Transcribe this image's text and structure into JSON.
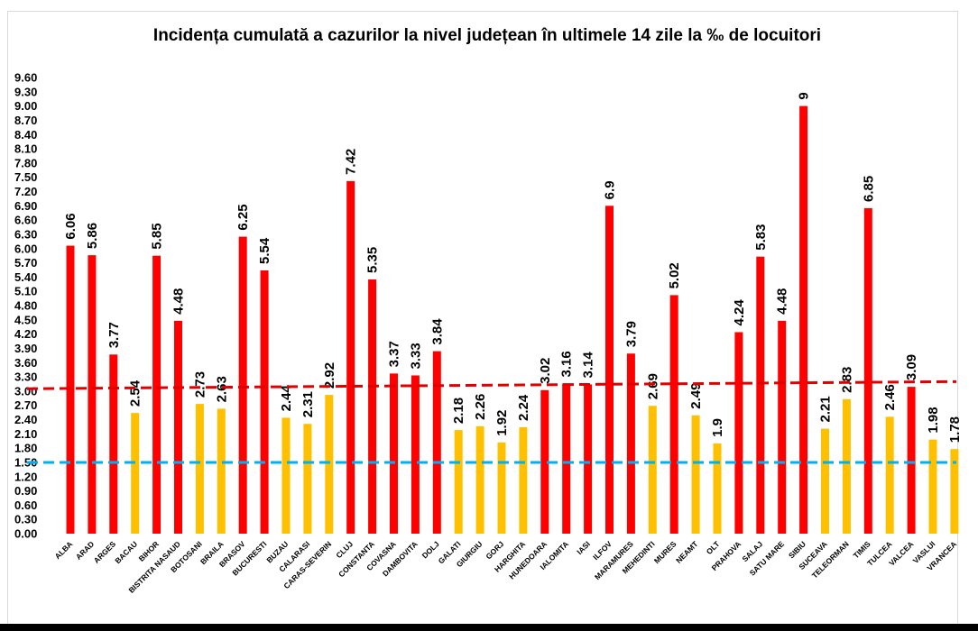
{
  "chart_data": {
    "type": "bar",
    "title": "Incidența cumulată a cazurilor la nivel județean în ultimele 14 zile la ‰ de locuitori",
    "xlabel": "",
    "ylabel": "",
    "ylim": [
      0,
      9.6
    ],
    "ytick_step": 0.3,
    "ytick_labels": [
      "0.00",
      "0.30",
      "0.60",
      "0.90",
      "1.20",
      "1.50",
      "1.80",
      "2.10",
      "2.40",
      "2.70",
      "3.00",
      "3.30",
      "3.60",
      "3.90",
      "4.20",
      "4.50",
      "4.80",
      "5.10",
      "5.40",
      "5.70",
      "6.00",
      "6.30",
      "6.60",
      "6.90",
      "7.20",
      "7.50",
      "7.80",
      "8.10",
      "8.40",
      "8.70",
      "9.00",
      "9.30",
      "9.60"
    ],
    "grid": false,
    "legend": "none",
    "categories": [
      "ALBA",
      "ARAD",
      "ARGES",
      "BACAU",
      "BIHOR",
      "BISTRITA NASAUD",
      "BOTOSANI",
      "BRAILA",
      "BRASOV",
      "BUCURESTI",
      "BUZAU",
      "CALARASI",
      "CARAS-SEVERIN",
      "CLUJ",
      "CONSTANTA",
      "COVASNA",
      "DAMBOVITA",
      "DOLJ",
      "GALATI",
      "GIURGIU",
      "GORJ",
      "HARGHITA",
      "HUNEDOARA",
      "IALOMITA",
      "IASI",
      "ILFOV",
      "MARAMURES",
      "MEHEDINTI",
      "MURES",
      "NEAMT",
      "OLT",
      "PRAHOVA",
      "SALAJ",
      "SATU MARE",
      "SIBIU",
      "SUCEAVA",
      "TELEORMAN",
      "TIMIS",
      "TULCEA",
      "VALCEA",
      "VASLUI",
      "VRANCEA"
    ],
    "values": [
      6.06,
      5.86,
      3.77,
      2.54,
      5.85,
      4.48,
      2.73,
      2.63,
      6.25,
      5.54,
      2.44,
      2.31,
      2.92,
      7.42,
      5.35,
      3.37,
      3.33,
      3.84,
      2.18,
      2.26,
      1.92,
      2.24,
      3.02,
      3.16,
      3.14,
      6.9,
      3.79,
      2.69,
      5.02,
      2.49,
      1.9,
      4.24,
      5.83,
      4.48,
      9,
      2.21,
      2.83,
      6.85,
      2.46,
      3.09,
      1.98,
      1.78
    ],
    "value_labels": [
      "6.06",
      "5.86",
      "3.77",
      "2.54",
      "5.85",
      "4.48",
      "2.73",
      "2.63",
      "6.25",
      "5.54",
      "2.44",
      "2.31",
      "2.92",
      "7.42",
      "5.35",
      "3.37",
      "3.33",
      "3.84",
      "2.18",
      "2.26",
      "1.92",
      "2.24",
      "3.02",
      "3.16",
      "3.14",
      "6.9",
      "3.79",
      "2.69",
      "5.02",
      "2.49",
      "1.9",
      "4.24",
      "5.83",
      "4.48",
      "9",
      "2.21",
      "2.83",
      "6.85",
      "2.46",
      "3.09",
      "1.98",
      "1.78"
    ],
    "bar_colors": [
      "#ff0000",
      "#ff0000",
      "#ff0000",
      "#ffc000",
      "#ff0000",
      "#ff0000",
      "#ffc000",
      "#ffc000",
      "#ff0000",
      "#ff0000",
      "#ffc000",
      "#ffc000",
      "#ffc000",
      "#ff0000",
      "#ff0000",
      "#ff0000",
      "#ff0000",
      "#ff0000",
      "#ffc000",
      "#ffc000",
      "#ffc000",
      "#ffc000",
      "#ff0000",
      "#ff0000",
      "#ff0000",
      "#ff0000",
      "#ff0000",
      "#ffc000",
      "#ff0000",
      "#ffc000",
      "#ffc000",
      "#ff0000",
      "#ff0000",
      "#ff0000",
      "#ff0000",
      "#ffc000",
      "#ffc000",
      "#ff0000",
      "#ffc000",
      "#ff0000",
      "#ffc000",
      "#ffc000"
    ],
    "colors": {
      "red": "#ff0000",
      "yellow": "#ffc000",
      "red_line": "#e00000",
      "blue_line": "#00b0f0"
    },
    "threshold_lines": [
      {
        "style": "dashed",
        "color": "#e00000",
        "y_start": 3.05,
        "y_end": 3.2
      },
      {
        "style": "dashed",
        "color": "#00b0f0",
        "y_start": 1.5,
        "y_end": 1.5
      }
    ]
  }
}
